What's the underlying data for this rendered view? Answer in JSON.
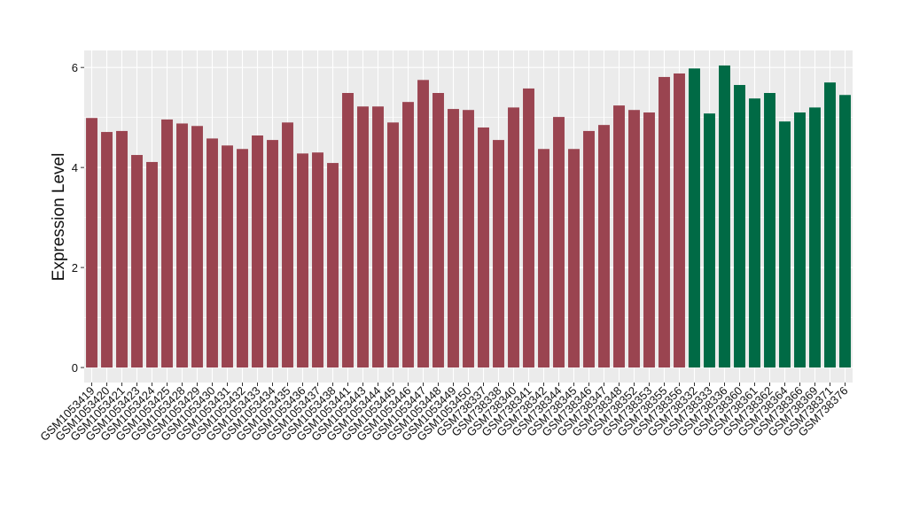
{
  "chart_data": {
    "type": "bar",
    "y_label": "Expression Level",
    "categories": [
      "GSM1053419",
      "GSM1053420",
      "GSM1053421",
      "GSM1053423",
      "GSM1053424",
      "GSM1053425",
      "GSM1053428",
      "GSM1053429",
      "GSM1053430",
      "GSM1053431",
      "GSM1053432",
      "GSM1053433",
      "GSM1053434",
      "GSM1053435",
      "GSM1053436",
      "GSM1053437",
      "GSM1053438",
      "GSM1053441",
      "GSM1053443",
      "GSM1053444",
      "GSM1053445",
      "GSM1053446",
      "GSM1053447",
      "GSM1053448",
      "GSM1053449",
      "GSM1053450",
      "GSM738337",
      "GSM738338",
      "GSM738340",
      "GSM738341",
      "GSM738342",
      "GSM738344",
      "GSM738345",
      "GSM738346",
      "GSM738347",
      "GSM738348",
      "GSM738352",
      "GSM738353",
      "GSM738355",
      "GSM738356",
      "GSM738332",
      "GSM738333",
      "GSM738336",
      "GSM738360",
      "GSM738361",
      "GSM738362",
      "GSM738364",
      "GSM738366",
      "GSM738369",
      "GSM738371",
      "GSM738376"
    ],
    "values": [
      4.99,
      4.71,
      4.73,
      4.25,
      4.11,
      4.96,
      4.88,
      4.83,
      4.58,
      4.44,
      4.37,
      4.64,
      4.55,
      4.9,
      4.28,
      4.3,
      4.09,
      5.49,
      5.22,
      5.22,
      4.9,
      5.31,
      5.75,
      5.49,
      5.17,
      5.15,
      4.8,
      4.55,
      5.2,
      5.58,
      4.37,
      5.01,
      4.37,
      4.73,
      4.85,
      5.24,
      5.15,
      5.1,
      5.81,
      5.88,
      5.98,
      5.08,
      6.04,
      5.65,
      5.38,
      5.49,
      4.92,
      5.1,
      5.2,
      5.7,
      5.45
    ],
    "bar_colors": [
      "#9a4450",
      "#9a4450",
      "#9a4450",
      "#9a4450",
      "#9a4450",
      "#9a4450",
      "#9a4450",
      "#9a4450",
      "#9a4450",
      "#9a4450",
      "#9a4450",
      "#9a4450",
      "#9a4450",
      "#9a4450",
      "#9a4450",
      "#9a4450",
      "#9a4450",
      "#9a4450",
      "#9a4450",
      "#9a4450",
      "#9a4450",
      "#9a4450",
      "#9a4450",
      "#9a4450",
      "#9a4450",
      "#9a4450",
      "#9a4450",
      "#9a4450",
      "#9a4450",
      "#9a4450",
      "#9a4450",
      "#9a4450",
      "#9a4450",
      "#9a4450",
      "#9a4450",
      "#9a4450",
      "#9a4450",
      "#9a4450",
      "#9a4450",
      "#9a4450",
      "#006a45",
      "#006a45",
      "#006a45",
      "#006a45",
      "#006a45",
      "#006a45",
      "#006a45",
      "#006a45",
      "#006a45",
      "#006a45",
      "#006a45"
    ],
    "ylim": [
      -0.3,
      6.34
    ],
    "yticks": [
      0,
      2,
      4,
      6
    ],
    "grid": true
  }
}
